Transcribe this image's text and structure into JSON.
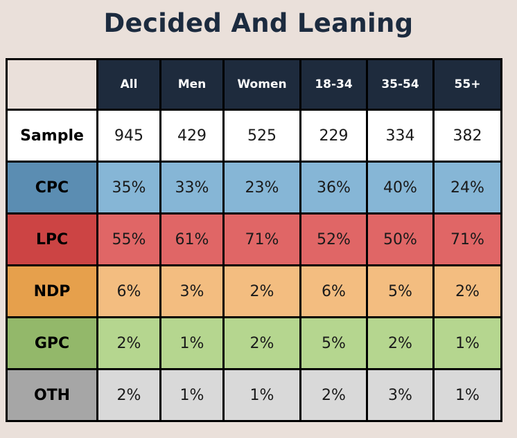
{
  "chart_data": {
    "type": "table",
    "title": "Decided And Leaning",
    "columns": [
      "All",
      "Men",
      "Women",
      "18-34",
      "35-54",
      "55+"
    ],
    "sample": {
      "label": "Sample",
      "values": [
        "945",
        "429",
        "525",
        "229",
        "334",
        "382"
      ]
    },
    "rows": [
      {
        "label": "CPC",
        "values": [
          "35%",
          "33%",
          "23%",
          "36%",
          "40%",
          "24%"
        ],
        "label_color": "#5b8db2",
        "cell_color": "#86b6d6"
      },
      {
        "label": "LPC",
        "values": [
          "55%",
          "61%",
          "71%",
          "52%",
          "50%",
          "71%"
        ],
        "label_color": "#cc4444",
        "cell_color": "#e06666"
      },
      {
        "label": "NDP",
        "values": [
          "6%",
          "3%",
          "2%",
          "6%",
          "5%",
          "2%"
        ],
        "label_color": "#e6a04c",
        "cell_color": "#f3bd80"
      },
      {
        "label": "GPC",
        "values": [
          "2%",
          "1%",
          "2%",
          "5%",
          "2%",
          "1%"
        ],
        "label_color": "#93b86a",
        "cell_color": "#b5d68f"
      },
      {
        "label": "OTH",
        "values": [
          "2%",
          "1%",
          "1%",
          "2%",
          "3%",
          "1%"
        ],
        "label_color": "#a6a6a6",
        "cell_color": "#d9d9d9"
      }
    ],
    "header_color": "#1e2b3d",
    "corner_color": "#eae0da",
    "sample_color": "#ffffff"
  }
}
